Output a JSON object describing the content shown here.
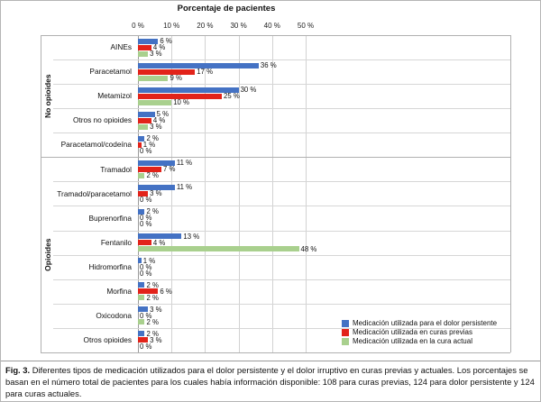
{
  "figure": {
    "caption_label": "Fig. 3.",
    "caption_text": " Diferentes tipos de medicación utilizados para el dolor persistente y el dolor irruptivo en curas previas y actuales. Los porcentajes se basan en el número total de pacientes para los cuales había información disponible: 108 para curas previas, 124 para dolor persistente y 124 para curas actuales."
  },
  "chart_data": {
    "type": "bar",
    "orientation": "horizontal",
    "title": "Porcentaje de pacientes",
    "x_ticks": [
      "0 %",
      "10 %",
      "20 %",
      "30 %",
      "40 %",
      "50 %"
    ],
    "xlim": [
      0,
      50
    ],
    "grid": true,
    "legend_position": "bottom-right",
    "value_suffix": " %",
    "groups": [
      {
        "label": "No opioides",
        "categories": [
          "AINEs",
          "Paracetamol",
          "Metamizol",
          "Otros no opioides",
          "Paracetamol/codeína"
        ]
      },
      {
        "label": "Opioides",
        "categories": [
          "Tramadol",
          "Tramadol/paracetamol",
          "Buprenorfina",
          "Fentanilo",
          "Hidromorfina",
          "Morfina",
          "Oxicodona",
          "Otros opioides"
        ]
      }
    ],
    "categories": [
      "AINEs",
      "Paracetamol",
      "Metamizol",
      "Otros no opioides",
      "Paracetamol/codeína",
      "Tramadol",
      "Tramadol/paracetamol",
      "Buprenorfina",
      "Fentanilo",
      "Hidromorfina",
      "Morfina",
      "Oxicodona",
      "Otros opioides"
    ],
    "series": [
      {
        "name": "Medicación utilizada para el dolor persistente",
        "color": "#4472C4",
        "values": [
          6,
          36,
          30,
          5,
          2,
          11,
          11,
          2,
          13,
          1,
          2,
          3,
          2
        ]
      },
      {
        "name": "Medicación utilizada en curas previas",
        "color": "#E2231A",
        "values": [
          4,
          17,
          25,
          4,
          1,
          7,
          3,
          0,
          4,
          0,
          6,
          0,
          3
        ]
      },
      {
        "name": "Medicación utilizada en la cura actual",
        "color": "#A9D08E",
        "values": [
          3,
          9,
          10,
          3,
          0,
          2,
          0,
          0,
          48,
          0,
          2,
          2,
          0
        ]
      }
    ]
  }
}
